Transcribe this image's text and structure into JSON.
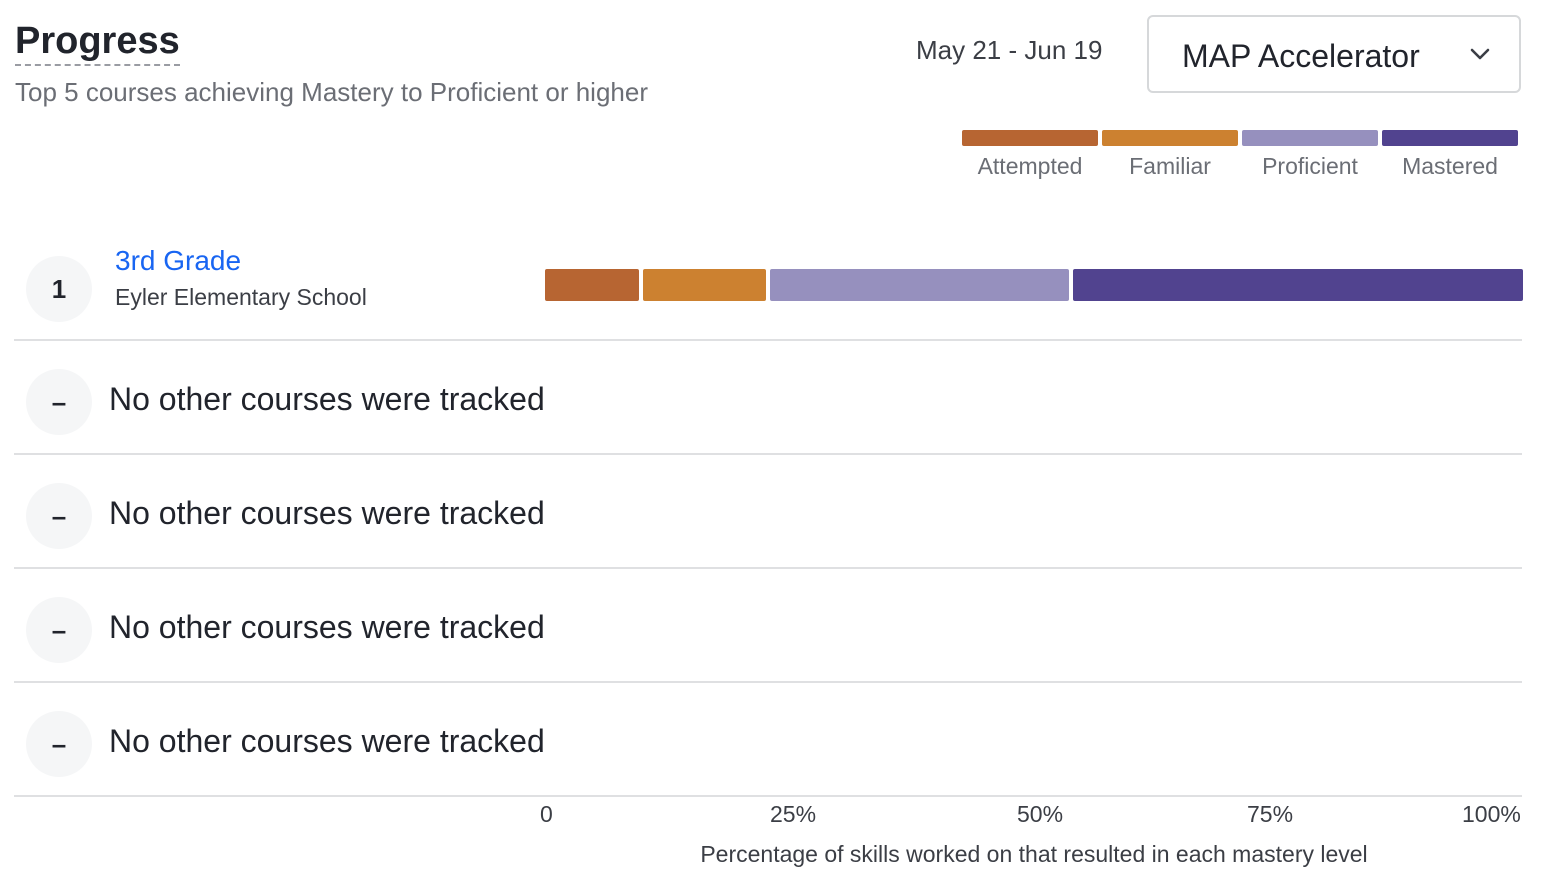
{
  "header": {
    "title": "Progress",
    "subtitle": "Top 5 courses achieving Mastery to Proficient or higher",
    "date_range": "May 21 - Jun 19",
    "product_select": {
      "value": "MAP Accelerator",
      "icon": "chevron-down-icon"
    }
  },
  "legend": [
    {
      "label": "Attempted",
      "color": "#b76532"
    },
    {
      "label": "Familiar",
      "color": "#cc8130"
    },
    {
      "label": "Proficient",
      "color": "#9690be"
    },
    {
      "label": "Mastered",
      "color": "#51438f"
    }
  ],
  "rows": [
    {
      "rank": "1",
      "course": "3rd Grade",
      "school": "Eyler Elementary School"
    },
    {
      "rank": "–",
      "text": "No other courses were tracked"
    },
    {
      "rank": "–",
      "text": "No other courses were tracked"
    },
    {
      "rank": "–",
      "text": "No other courses were tracked"
    },
    {
      "rank": "–",
      "text": "No other courses were tracked"
    }
  ],
  "chart_data": {
    "type": "bar",
    "orientation": "horizontal",
    "stacked": true,
    "categories": [
      "3rd Grade"
    ],
    "series": [
      {
        "name": "Attempted",
        "values": [
          10
        ],
        "color": "#b76532"
      },
      {
        "name": "Familiar",
        "values": [
          13
        ],
        "color": "#cc8130"
      },
      {
        "name": "Proficient",
        "values": [
          31
        ],
        "color": "#9690be"
      },
      {
        "name": "Mastered",
        "values": [
          46
        ],
        "color": "#51438f"
      }
    ],
    "xlim": [
      0,
      100
    ],
    "xticks": [
      "0",
      "25%",
      "50%",
      "75%",
      "100%"
    ],
    "xlabel": "Percentage of skills worked on that resulted in each mastery level",
    "legend_position": "top-right",
    "grid": false
  }
}
